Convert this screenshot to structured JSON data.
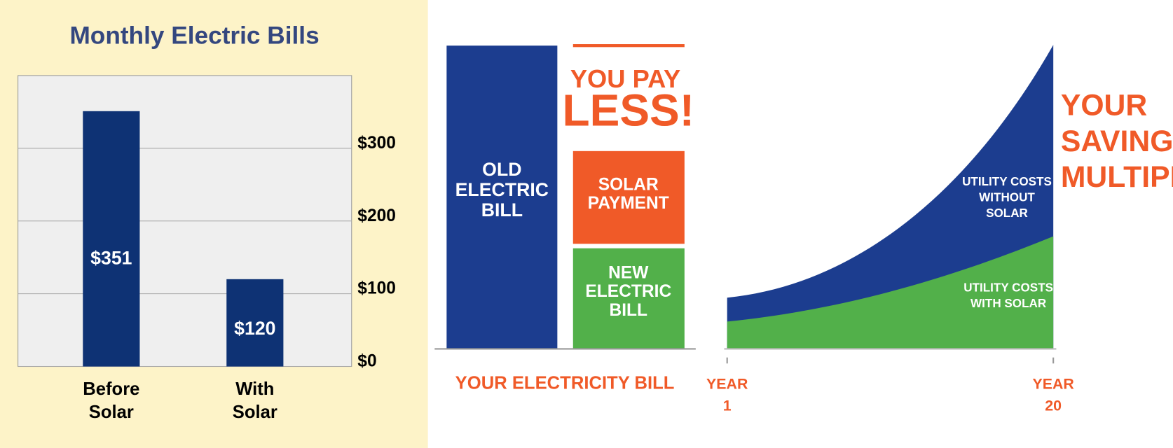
{
  "chart_data": {
    "type": "bar",
    "title": "Monthly Electric Bills",
    "categories": [
      "Before Solar",
      "With Solar"
    ],
    "values": [
      351,
      120
    ],
    "value_labels": [
      "$351",
      "$120"
    ],
    "color": "#0e3274",
    "ylim": [
      0,
      400
    ],
    "yticks": [
      {
        "value": 0,
        "label": "$0"
      },
      {
        "value": 100,
        "label": "$100"
      },
      {
        "value": 200,
        "label": "$200"
      },
      {
        "value": 300,
        "label": "$300"
      }
    ],
    "grid": true,
    "y_axis_side": "right"
  },
  "infographic": {
    "bill_panel": {
      "headline": [
        "YOU PAY",
        "LESS!"
      ],
      "old_bill": "OLD ELECTRIC BILL",
      "solar_payment": "SOLAR PAYMENT",
      "new_bill": "NEW ELECTRIC BILL",
      "caption": "YOUR ELECTRICITY BILL"
    },
    "savings_panel": {
      "headline": "YOUR SAVINGS MULTIPLY",
      "without_solar": "UTILITY COSTS WITHOUT SOLAR",
      "with_solar": "UTILITY COSTS WITH SOLAR",
      "start_label": "YEAR 1",
      "end_label": "YEAR 20"
    }
  }
}
